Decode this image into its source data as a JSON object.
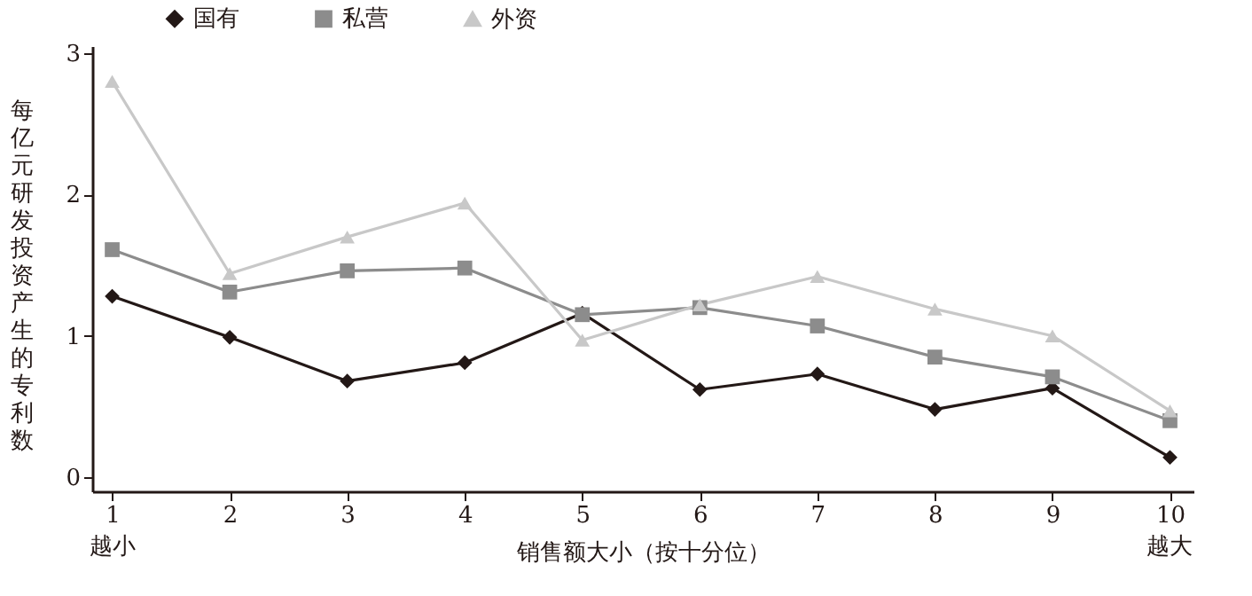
{
  "chart_data": {
    "type": "line",
    "xlabel": "销售额大小（按十分位）",
    "ylabel": "每亿元研发投资产生的专利数",
    "x": [
      1,
      2,
      3,
      4,
      5,
      6,
      7,
      8,
      9,
      10
    ],
    "series": [
      {
        "name": "国有",
        "color": "#231816",
        "marker": "diamond",
        "values": [
          1.28,
          0.99,
          0.68,
          0.81,
          1.16,
          0.62,
          0.73,
          0.48,
          0.63,
          0.14
        ]
      },
      {
        "name": "私营",
        "color": "#8c8c8c",
        "marker": "square",
        "values": [
          1.61,
          1.31,
          1.46,
          1.48,
          1.15,
          1.2,
          1.07,
          0.85,
          0.71,
          0.4
        ]
      },
      {
        "name": "外资",
        "color": "#c8c8c8",
        "marker": "triangle",
        "values": [
          2.8,
          1.44,
          1.7,
          1.94,
          0.97,
          1.22,
          1.42,
          1.19,
          1.0,
          0.47
        ]
      }
    ],
    "xlim": [
      0.83,
      10.2
    ],
    "xticks": [
      1,
      2,
      3,
      4,
      5,
      6,
      7,
      8,
      9,
      10
    ],
    "ylim": [
      -0.1,
      3.05
    ],
    "yticks": [
      0,
      1,
      2,
      3
    ],
    "annotations": [
      "越小",
      "越大"
    ],
    "grid": false,
    "legend": "top",
    "line_style": "solid"
  }
}
